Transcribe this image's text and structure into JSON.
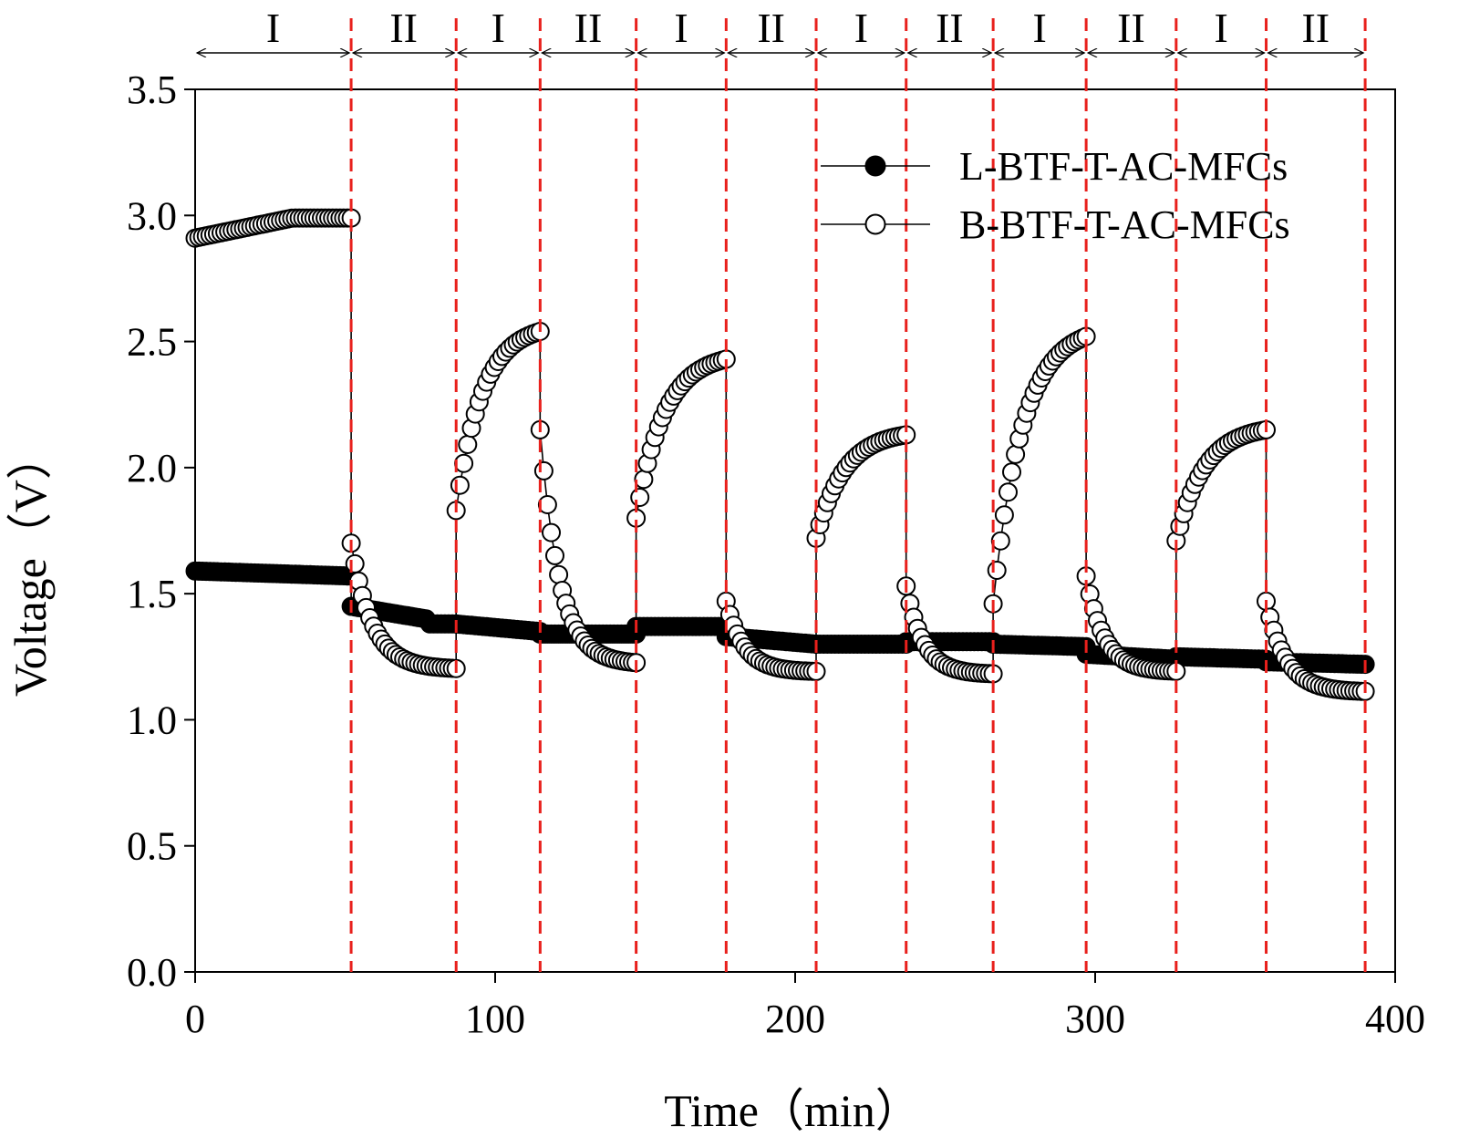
{
  "chart_data": {
    "type": "scatter",
    "xlabel": "Time（min）",
    "ylabel": "Voltage（V）",
    "xlim": [
      0,
      400
    ],
    "ylim": [
      0,
      3.5
    ],
    "xticks": [
      "0",
      "100",
      "200",
      "300",
      "400"
    ],
    "yticks": [
      "0.0",
      "0.5",
      "1.0",
      "1.5",
      "2.0",
      "2.5",
      "3.0",
      "3.5"
    ],
    "grid": false,
    "legend_position": "top-right",
    "boundary_color": "#e8201c",
    "phase_boundaries": [
      0,
      52,
      87,
      115,
      147,
      177,
      207,
      237,
      266,
      297,
      327,
      357,
      390
    ],
    "phases": [
      "I",
      "II",
      "I",
      "II",
      "I",
      "II",
      "I",
      "II",
      "I",
      "II",
      "I",
      "II"
    ],
    "series": [
      {
        "name": "L-BTF-T-AC-MFCs",
        "marker": "filled-circle",
        "segments": [
          {
            "t0": 0,
            "t1": 52,
            "start": 1.59,
            "end": 1.57
          },
          {
            "t0": 52,
            "t1": 87,
            "start": 1.45,
            "end": 1.38,
            "step_at": 78,
            "step_to": 1.38
          },
          {
            "t0": 87,
            "t1": 115,
            "start": 1.38,
            "end": 1.35
          },
          {
            "t0": 115,
            "t1": 147,
            "start": 1.34,
            "end": 1.34
          },
          {
            "t0": 147,
            "t1": 177,
            "start": 1.37,
            "end": 1.37
          },
          {
            "t0": 177,
            "t1": 207,
            "start": 1.33,
            "end": 1.3
          },
          {
            "t0": 207,
            "t1": 237,
            "start": 1.3,
            "end": 1.3
          },
          {
            "t0": 237,
            "t1": 266,
            "start": 1.31,
            "end": 1.31
          },
          {
            "t0": 266,
            "t1": 297,
            "start": 1.3,
            "end": 1.29
          },
          {
            "t0": 297,
            "t1": 327,
            "start": 1.26,
            "end": 1.24
          },
          {
            "t0": 327,
            "t1": 357,
            "start": 1.25,
            "end": 1.24
          },
          {
            "t0": 357,
            "t1": 390,
            "start": 1.23,
            "end": 1.22
          }
        ]
      },
      {
        "name": "B-BTF-T-AC-MFCs",
        "marker": "open-circle",
        "segments": [
          {
            "t0": 0,
            "t1": 52,
            "start": 2.91,
            "end": 2.99,
            "shape": "flat-rise"
          },
          {
            "t0": 52,
            "t1": 87,
            "start": 1.7,
            "end": 1.2,
            "shape": "decay"
          },
          {
            "t0": 87,
            "t1": 115,
            "start": 1.83,
            "end": 2.54,
            "shape": "rise"
          },
          {
            "t0": 115,
            "t1": 147,
            "start": 2.15,
            "end": 1.22,
            "shape": "decay"
          },
          {
            "t0": 147,
            "t1": 177,
            "start": 1.8,
            "end": 2.43,
            "shape": "rise"
          },
          {
            "t0": 177,
            "t1": 207,
            "start": 1.47,
            "end": 1.19,
            "shape": "decay"
          },
          {
            "t0": 207,
            "t1": 237,
            "start": 1.72,
            "end": 2.13,
            "shape": "rise"
          },
          {
            "t0": 237,
            "t1": 266,
            "start": 1.53,
            "end": 1.18,
            "shape": "decay"
          },
          {
            "t0": 266,
            "t1": 297,
            "start": 1.46,
            "end": 2.52,
            "shape": "rise"
          },
          {
            "t0": 297,
            "t1": 327,
            "start": 1.57,
            "end": 1.19,
            "shape": "decay"
          },
          {
            "t0": 327,
            "t1": 357,
            "start": 1.71,
            "end": 2.15,
            "shape": "rise"
          },
          {
            "t0": 357,
            "t1": 390,
            "start": 1.47,
            "end": 1.11,
            "shape": "decay"
          }
        ]
      }
    ]
  }
}
